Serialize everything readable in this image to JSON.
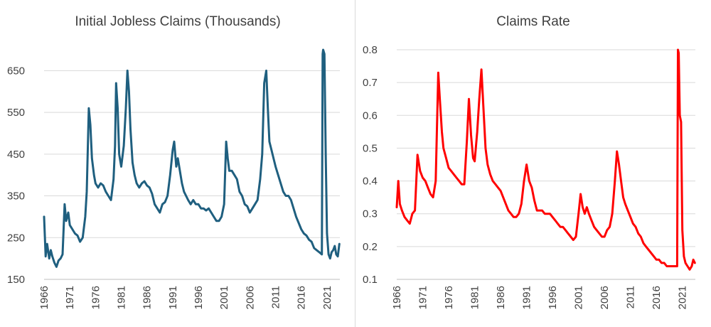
{
  "chart_data": [
    {
      "type": "line",
      "title": "Initial Jobless Claims (Thousands)",
      "xlabel": "",
      "ylabel": "",
      "xlim": [
        1966,
        2023.5
      ],
      "ylim": [
        150,
        700
      ],
      "yticks": [
        150,
        250,
        350,
        450,
        550,
        650
      ],
      "xticks": [
        "1966",
        "1971",
        "1976",
        "1981",
        "1986",
        "1991",
        "1996",
        "2001",
        "2006",
        "2011",
        "2016",
        "2021"
      ],
      "grid": true,
      "legend": "none",
      "color": "#1f5f7f",
      "series": [
        {
          "x": [
            1966.0,
            1966.3,
            1966.6,
            1967.0,
            1967.3,
            1967.6,
            1968.0,
            1968.4,
            1968.8,
            1969.2,
            1969.6,
            1970.0,
            1970.3,
            1970.7,
            1971.0,
            1971.5,
            1972.0,
            1972.5,
            1973.0,
            1973.5,
            1974.0,
            1974.3,
            1974.7,
            1975.0,
            1975.3,
            1975.7,
            1976.0,
            1976.5,
            1977.0,
            1977.5,
            1978.0,
            1978.5,
            1979.0,
            1979.5,
            1979.8,
            1980.0,
            1980.3,
            1980.6,
            1981.0,
            1981.5,
            1981.9,
            1982.2,
            1982.5,
            1982.8,
            1983.2,
            1983.6,
            1984.0,
            1984.5,
            1985.0,
            1985.5,
            1986.0,
            1986.5,
            1987.0,
            1987.5,
            1988.0,
            1988.5,
            1989.0,
            1989.5,
            1990.0,
            1990.5,
            1991.0,
            1991.3,
            1991.7,
            1992.0,
            1992.4,
            1992.8,
            1993.2,
            1993.6,
            1994.0,
            1994.5,
            1995.0,
            1995.5,
            1996.0,
            1996.5,
            1997.0,
            1997.5,
            1998.0,
            1998.5,
            1999.0,
            1999.5,
            2000.0,
            2000.5,
            2001.0,
            2001.4,
            2001.7,
            2002.0,
            2002.5,
            2003.0,
            2003.5,
            2004.0,
            2004.5,
            2005.0,
            2005.5,
            2006.0,
            2006.5,
            2007.0,
            2007.5,
            2008.0,
            2008.4,
            2008.8,
            2009.2,
            2009.5,
            2009.8,
            2010.2,
            2010.6,
            2011.0,
            2011.5,
            2012.0,
            2012.5,
            2013.0,
            2013.5,
            2014.0,
            2014.5,
            2015.0,
            2015.5,
            2016.0,
            2016.5,
            2017.0,
            2017.5,
            2018.0,
            2018.5,
            2019.0,
            2019.5,
            2020.0,
            2020.15,
            2020.25,
            2020.5,
            2020.75,
            2021.0,
            2021.3,
            2021.6,
            2021.9,
            2022.2,
            2022.5,
            2022.8,
            2023.1,
            2023.4
          ],
          "values": [
            300,
            205,
            235,
            200,
            220,
            205,
            190,
            180,
            195,
            200,
            210,
            330,
            290,
            310,
            280,
            270,
            260,
            255,
            240,
            250,
            300,
            360,
            560,
            520,
            440,
            400,
            380,
            370,
            380,
            375,
            360,
            350,
            340,
            390,
            470,
            620,
            560,
            450,
            420,
            470,
            560,
            650,
            600,
            510,
            430,
            400,
            380,
            370,
            380,
            385,
            375,
            370,
            355,
            330,
            320,
            310,
            330,
            335,
            350,
            400,
            460,
            480,
            420,
            440,
            410,
            380,
            360,
            350,
            340,
            330,
            340,
            330,
            330,
            320,
            320,
            315,
            320,
            310,
            300,
            290,
            290,
            300,
            330,
            480,
            440,
            410,
            410,
            400,
            390,
            360,
            350,
            330,
            325,
            310,
            320,
            330,
            340,
            390,
            450,
            620,
            650,
            560,
            480,
            460,
            440,
            420,
            400,
            380,
            360,
            350,
            350,
            340,
            320,
            300,
            285,
            270,
            260,
            255,
            245,
            240,
            225,
            220,
            215,
            210,
            690,
            700,
            690,
            450,
            260,
            210,
            200,
            215,
            220,
            230,
            210,
            205,
            235
          ]
        }
      ]
    },
    {
      "type": "line",
      "title": "Claims Rate",
      "xlabel": "",
      "ylabel": "",
      "xlim": [
        1966,
        2023.5
      ],
      "ylim": [
        0.1,
        0.8
      ],
      "yticks": [
        0.1,
        0.2,
        0.3,
        0.4,
        0.5,
        0.6,
        0.7,
        0.8
      ],
      "xticks": [
        "1966",
        "1971",
        "1976",
        "1981",
        "1986",
        "1991",
        "1996",
        "2001",
        "2006",
        "2011",
        "2016",
        "2021"
      ],
      "grid": true,
      "legend": "none",
      "color": "#ff0000",
      "series": [
        {
          "x": [
            1966.0,
            1966.3,
            1966.6,
            1967.0,
            1967.5,
            1968.0,
            1968.5,
            1969.0,
            1969.5,
            1970.0,
            1970.5,
            1971.0,
            1971.5,
            1972.0,
            1972.5,
            1973.0,
            1973.5,
            1974.0,
            1974.3,
            1974.7,
            1975.0,
            1975.5,
            1976.0,
            1976.5,
            1977.0,
            1977.5,
            1978.0,
            1978.5,
            1979.0,
            1979.5,
            1979.9,
            1980.3,
            1980.7,
            1981.0,
            1981.5,
            1981.9,
            1982.3,
            1982.7,
            1983.1,
            1983.5,
            1984.0,
            1984.5,
            1985.0,
            1985.5,
            1986.0,
            1986.5,
            1987.0,
            1987.5,
            1988.0,
            1988.5,
            1989.0,
            1989.5,
            1990.0,
            1990.5,
            1991.0,
            1991.5,
            1992.0,
            1992.5,
            1993.0,
            1993.5,
            1994.0,
            1994.5,
            1995.0,
            1995.5,
            1996.0,
            1996.5,
            1997.0,
            1997.5,
            1998.0,
            1998.5,
            1999.0,
            1999.5,
            2000.0,
            2000.5,
            2001.0,
            2001.4,
            2001.8,
            2002.2,
            2002.6,
            2003.0,
            2003.5,
            2004.0,
            2004.5,
            2005.0,
            2005.5,
            2006.0,
            2006.5,
            2007.0,
            2007.5,
            2008.0,
            2008.4,
            2008.8,
            2009.2,
            2009.6,
            2010.0,
            2010.5,
            2011.0,
            2011.5,
            2012.0,
            2012.5,
            2013.0,
            2013.5,
            2014.0,
            2014.5,
            2015.0,
            2015.5,
            2016.0,
            2016.5,
            2017.0,
            2017.5,
            2018.0,
            2018.5,
            2019.0,
            2019.5,
            2020.0,
            2020.15,
            2020.3,
            2020.5,
            2020.75,
            2021.0,
            2021.3,
            2021.6,
            2022.0,
            2022.4,
            2022.8,
            2023.1,
            2023.4
          ],
          "values": [
            0.32,
            0.4,
            0.33,
            0.31,
            0.29,
            0.28,
            0.27,
            0.3,
            0.31,
            0.48,
            0.43,
            0.41,
            0.4,
            0.38,
            0.36,
            0.35,
            0.4,
            0.73,
            0.65,
            0.55,
            0.5,
            0.47,
            0.44,
            0.43,
            0.42,
            0.41,
            0.4,
            0.39,
            0.39,
            0.52,
            0.65,
            0.54,
            0.47,
            0.46,
            0.55,
            0.65,
            0.74,
            0.62,
            0.5,
            0.45,
            0.42,
            0.4,
            0.39,
            0.38,
            0.37,
            0.35,
            0.33,
            0.31,
            0.3,
            0.29,
            0.29,
            0.3,
            0.33,
            0.4,
            0.45,
            0.4,
            0.38,
            0.34,
            0.31,
            0.31,
            0.31,
            0.3,
            0.3,
            0.3,
            0.29,
            0.28,
            0.27,
            0.26,
            0.26,
            0.25,
            0.24,
            0.23,
            0.22,
            0.23,
            0.3,
            0.36,
            0.32,
            0.3,
            0.32,
            0.3,
            0.28,
            0.26,
            0.25,
            0.24,
            0.23,
            0.23,
            0.25,
            0.26,
            0.3,
            0.4,
            0.49,
            0.45,
            0.4,
            0.35,
            0.33,
            0.31,
            0.29,
            0.27,
            0.26,
            0.24,
            0.23,
            0.21,
            0.2,
            0.19,
            0.18,
            0.17,
            0.16,
            0.16,
            0.15,
            0.15,
            0.14,
            0.14,
            0.14,
            0.14,
            0.14,
            0.8,
            0.79,
            0.6,
            0.58,
            0.25,
            0.17,
            0.15,
            0.14,
            0.13,
            0.14,
            0.16,
            0.15
          ]
        }
      ]
    }
  ]
}
